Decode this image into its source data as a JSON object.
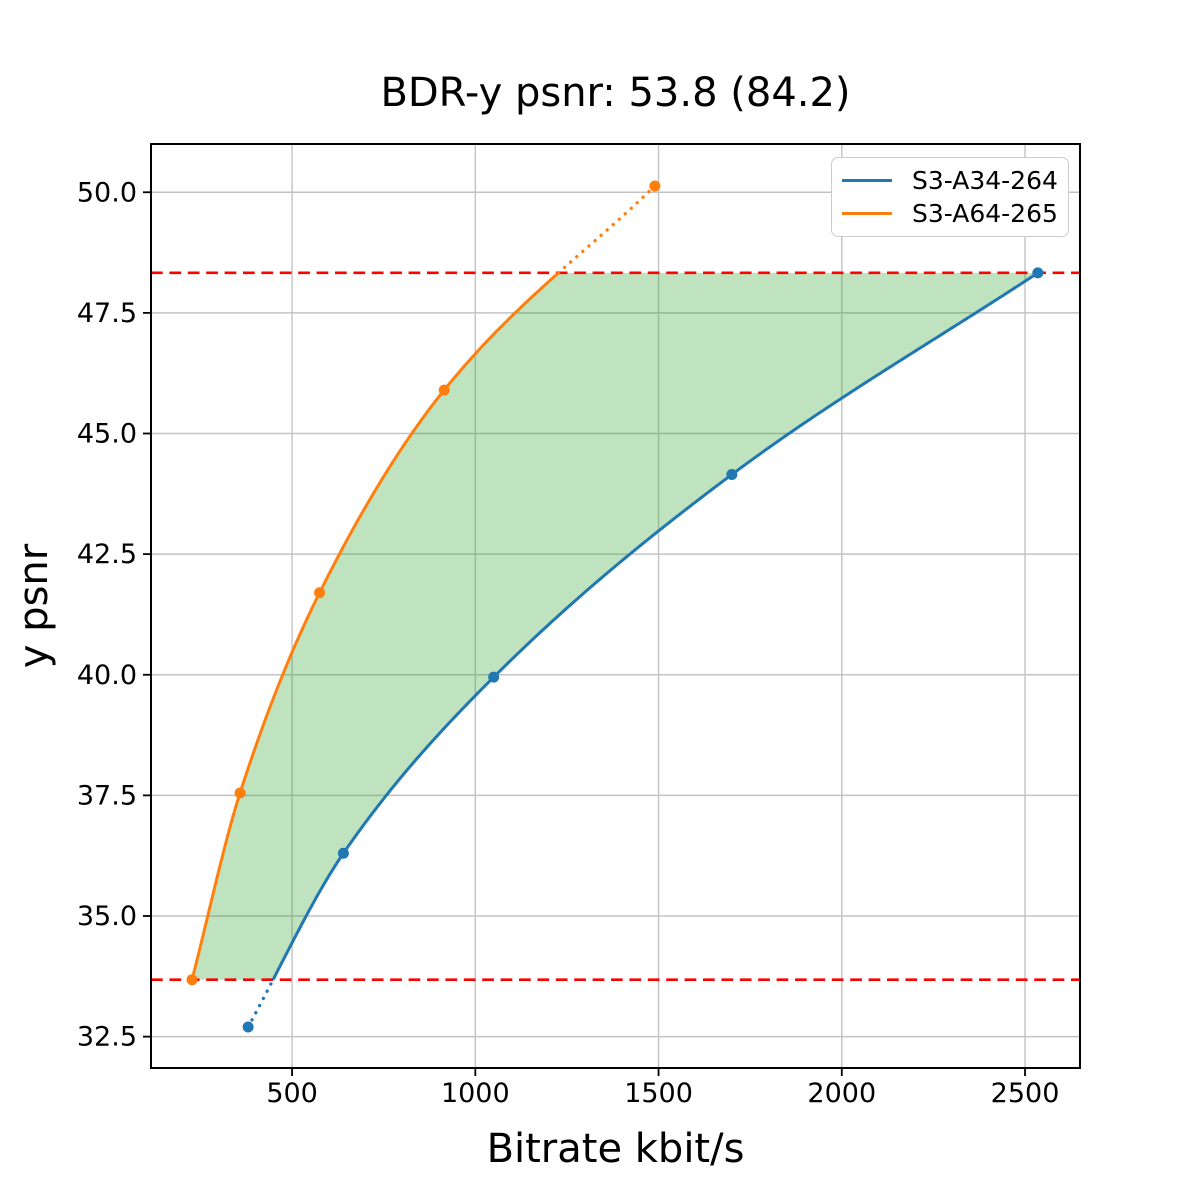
{
  "chart_data": {
    "type": "line",
    "title": "BDR-y psnr: 53.8 (84.2)",
    "xlabel": "Bitrate kbit/s",
    "ylabel": "y psnr",
    "xlim": [
      115,
      2650
    ],
    "ylim": [
      31.85,
      51.0
    ],
    "xticks": [
      500,
      1000,
      1500,
      2000,
      2500
    ],
    "yticks": [
      32.5,
      35.0,
      37.5,
      40.0,
      42.5,
      45.0,
      47.5,
      50.0
    ],
    "grid": true,
    "legend_position": "upper right",
    "series": [
      {
        "name": "S3-A34-264",
        "color": "#1f77b4",
        "points": [
          [
            380,
            32.7
          ],
          [
            640,
            36.3
          ],
          [
            1050,
            39.95
          ],
          [
            1700,
            44.15
          ],
          [
            2535,
            48.33
          ]
        ]
      },
      {
        "name": "S3-A64-265",
        "color": "#ff7f0e",
        "points": [
          [
            227,
            33.68
          ],
          [
            358,
            37.55
          ],
          [
            575,
            41.7
          ],
          [
            915,
            45.9
          ],
          [
            1490,
            50.13
          ]
        ]
      }
    ],
    "hlines": [
      {
        "name": "bdr-upper-bound",
        "y": 48.33,
        "color": "#ff0000",
        "style": "dashed"
      },
      {
        "name": "bdr-lower-bound",
        "y": 33.68,
        "color": "#ff0000",
        "style": "dashed"
      }
    ],
    "shaded_region": {
      "between": [
        "S3-A64-265",
        "S3-A34-264"
      ],
      "y_range": [
        33.68,
        48.33
      ],
      "color": "#2ca02c",
      "alpha": 0.3
    },
    "style": {
      "grid_color": "#c3c3c3",
      "spine_color": "#000000",
      "tick_label_color": "#000000"
    }
  }
}
